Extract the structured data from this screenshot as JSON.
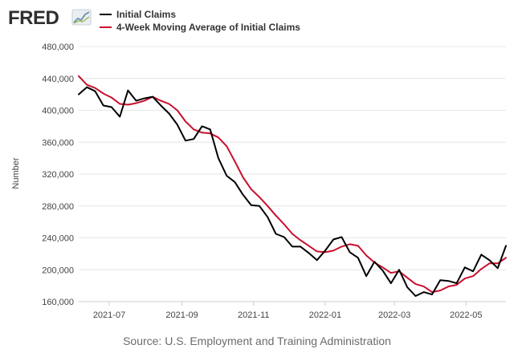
{
  "logo": {
    "text": "FRED",
    "icon": "line-chart-icon"
  },
  "chart_data": {
    "type": "line",
    "title": "",
    "xlabel": "",
    "ylabel": "Number",
    "ylim": [
      160000,
      480000
    ],
    "yticks": [
      160000,
      200000,
      240000,
      280000,
      320000,
      360000,
      400000,
      440000,
      480000
    ],
    "ytick_labels": [
      "160,000",
      "200,000",
      "240,000",
      "280,000",
      "320,000",
      "360,000",
      "400,000",
      "440,000",
      "480,000"
    ],
    "xlim": [
      "2021-06-05",
      "2022-06-04"
    ],
    "xticks": [
      "2021-07-01",
      "2021-09-01",
      "2021-11-01",
      "2022-01-01",
      "2022-03-01",
      "2022-05-01"
    ],
    "xtick_labels": [
      "2021-07",
      "2021-09",
      "2021-11",
      "2022-01",
      "2022-03",
      "2022-05"
    ],
    "grid": true,
    "legend_placement": "top-left",
    "x": [
      "2021-06-05",
      "2021-06-12",
      "2021-06-19",
      "2021-06-26",
      "2021-07-03",
      "2021-07-10",
      "2021-07-17",
      "2021-07-24",
      "2021-07-31",
      "2021-08-07",
      "2021-08-14",
      "2021-08-21",
      "2021-08-28",
      "2021-09-04",
      "2021-09-11",
      "2021-09-18",
      "2021-09-25",
      "2021-10-02",
      "2021-10-09",
      "2021-10-16",
      "2021-10-23",
      "2021-10-30",
      "2021-11-06",
      "2021-11-13",
      "2021-11-20",
      "2021-11-27",
      "2021-12-04",
      "2021-12-11",
      "2021-12-18",
      "2021-12-25",
      "2022-01-01",
      "2022-01-08",
      "2022-01-15",
      "2022-01-22",
      "2022-01-29",
      "2022-02-05",
      "2022-02-12",
      "2022-02-19",
      "2022-02-26",
      "2022-03-05",
      "2022-03-12",
      "2022-03-19",
      "2022-03-26",
      "2022-04-02",
      "2022-04-09",
      "2022-04-16",
      "2022-04-23",
      "2022-04-30",
      "2022-05-07",
      "2022-05-14",
      "2022-05-21",
      "2022-05-28",
      "2022-06-04"
    ],
    "series": [
      {
        "name": "Initial Claims",
        "color": "#000000",
        "values": [
          420000,
          429000,
          424000,
          406000,
          404000,
          392000,
          425000,
          412000,
          415000,
          417000,
          406000,
          396000,
          382000,
          362000,
          364000,
          380000,
          376000,
          340000,
          318000,
          310000,
          294000,
          281000,
          280000,
          266000,
          245000,
          241000,
          229000,
          229000,
          221000,
          212000,
          224000,
          238000,
          241000,
          222000,
          215000,
          192000,
          210000,
          199000,
          183000,
          200000,
          178000,
          167000,
          172000,
          169000,
          187000,
          186000,
          183000,
          203000,
          198000,
          219000,
          212000,
          202000,
          230000
        ]
      },
      {
        "name": "4-Week Moving Average of Initial Claims",
        "color": "#c8102e",
        "values": [
          443000,
          432000,
          428000,
          421000,
          416000,
          408000,
          407000,
          409000,
          412000,
          417000,
          412000,
          408000,
          400000,
          386000,
          376000,
          372000,
          371000,
          366000,
          355000,
          336000,
          316000,
          301000,
          291000,
          280000,
          268000,
          257000,
          245000,
          237000,
          230000,
          223000,
          222000,
          224000,
          229000,
          232000,
          230000,
          218000,
          209000,
          203000,
          196000,
          198000,
          190000,
          182000,
          179000,
          172000,
          174000,
          179000,
          181000,
          189000,
          192000,
          201000,
          208000,
          208000,
          215000
        ]
      }
    ]
  },
  "source": "Source: U.S. Employment and Training Administration"
}
